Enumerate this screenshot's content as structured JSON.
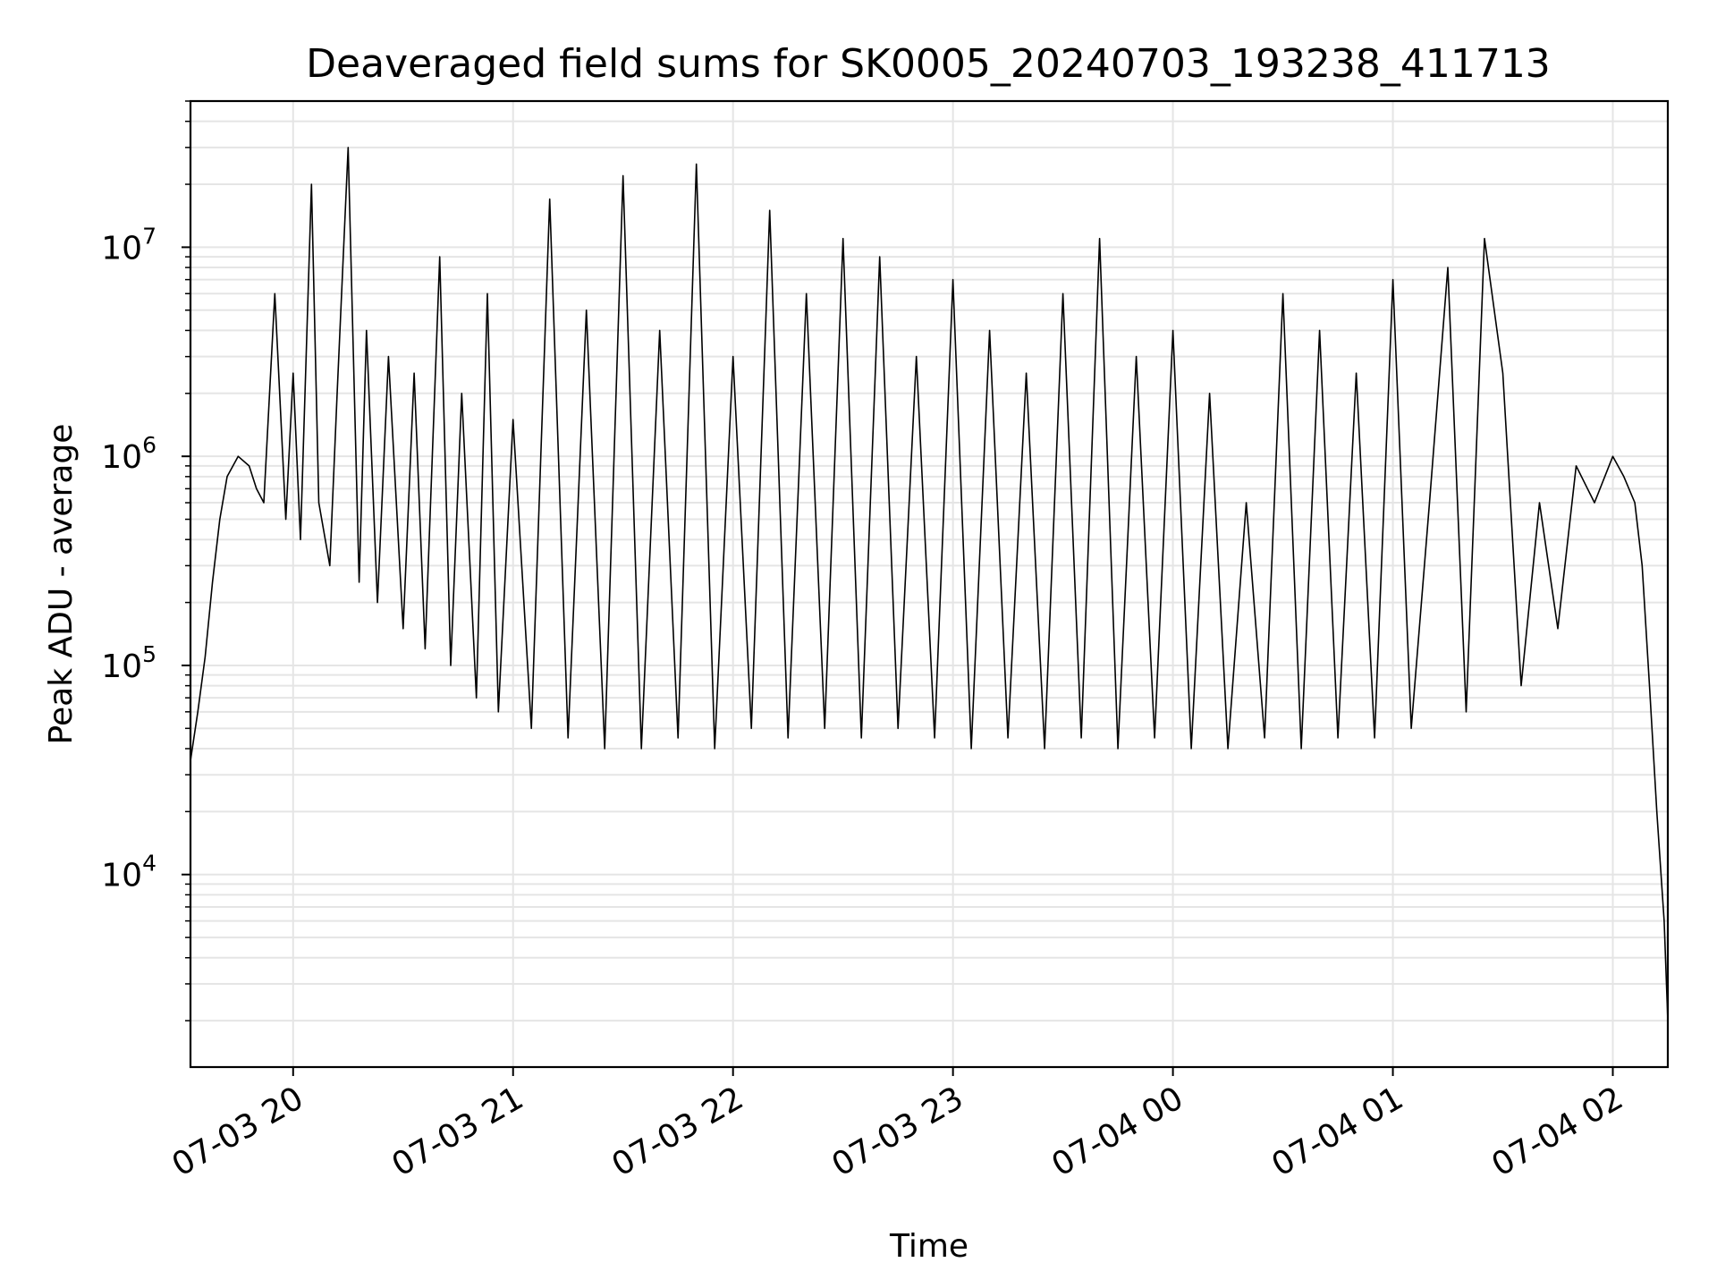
{
  "chart_data": {
    "type": "line",
    "title": "Deaveraged field sums for SK0005_20240703_193238_411713",
    "xlabel": "Time",
    "ylabel": "Peak ADU - average",
    "xscale": "time",
    "yscale": "log",
    "xlim": [
      "07-03 19:32",
      "07-04 02:15"
    ],
    "ylim": [
      1200,
      50000000
    ],
    "grid": true,
    "line_color": "#000000",
    "grid_color": "#e5e5e5",
    "x_ticks": [
      {
        "time": "07-03 20:00",
        "label": "07-03 20"
      },
      {
        "time": "07-03 21:00",
        "label": "07-03 21"
      },
      {
        "time": "07-03 22:00",
        "label": "07-03 22"
      },
      {
        "time": "07-03 23:00",
        "label": "07-03 23"
      },
      {
        "time": "07-04 00:00",
        "label": "07-04 00"
      },
      {
        "time": "07-04 01:00",
        "label": "07-04 01"
      },
      {
        "time": "07-04 02:00",
        "label": "07-04 02"
      }
    ],
    "y_ticks": [
      {
        "value": 10000,
        "base": "10",
        "exp": "4"
      },
      {
        "value": 100000,
        "base": "10",
        "exp": "5"
      },
      {
        "value": 1000000,
        "base": "10",
        "exp": "6"
      },
      {
        "value": 10000000,
        "base": "10",
        "exp": "7"
      }
    ],
    "series": [
      {
        "x": [
          "07-03 19:32",
          "07-03 19:34",
          "07-03 19:36",
          "07-03 19:38",
          "07-03 19:40",
          "07-03 19:42",
          "07-03 19:45",
          "07-03 19:48",
          "07-03 19:50",
          "07-03 19:52",
          "07-03 19:55",
          "07-03 19:58",
          "07-03 20:00",
          "07-03 20:02",
          "07-03 20:05",
          "07-03 20:07",
          "07-03 20:10",
          "07-03 20:12",
          "07-03 20:15",
          "07-03 20:18",
          "07-03 20:20",
          "07-03 20:23",
          "07-03 20:26",
          "07-03 20:30",
          "07-03 20:33",
          "07-03 20:36",
          "07-03 20:40",
          "07-03 20:43",
          "07-03 20:46",
          "07-03 20:50",
          "07-03 20:53",
          "07-03 20:56",
          "07-03 21:00",
          "07-03 21:05",
          "07-03 21:10",
          "07-03 21:15",
          "07-03 21:20",
          "07-03 21:25",
          "07-03 21:30",
          "07-03 21:35",
          "07-03 21:40",
          "07-03 21:45",
          "07-03 21:50",
          "07-03 21:55",
          "07-03 22:00",
          "07-03 22:05",
          "07-03 22:10",
          "07-03 22:15",
          "07-03 22:20",
          "07-03 22:25",
          "07-03 22:30",
          "07-03 22:35",
          "07-03 22:40",
          "07-03 22:45",
          "07-03 22:50",
          "07-03 22:55",
          "07-03 23:00",
          "07-03 23:05",
          "07-03 23:10",
          "07-03 23:15",
          "07-03 23:20",
          "07-03 23:25",
          "07-03 23:30",
          "07-03 23:35",
          "07-03 23:40",
          "07-03 23:45",
          "07-03 23:50",
          "07-03 23:55",
          "07-04 00:00",
          "07-04 00:05",
          "07-04 00:10",
          "07-04 00:15",
          "07-04 00:20",
          "07-04 00:25",
          "07-04 00:30",
          "07-04 00:35",
          "07-04 00:40",
          "07-04 00:45",
          "07-04 00:50",
          "07-04 00:55",
          "07-04 01:00",
          "07-04 01:05",
          "07-04 01:10",
          "07-04 01:15",
          "07-04 01:20",
          "07-04 01:25",
          "07-04 01:30",
          "07-04 01:35",
          "07-04 01:40",
          "07-04 01:45",
          "07-04 01:50",
          "07-04 01:55",
          "07-04 02:00",
          "07-04 02:03",
          "07-04 02:06",
          "07-04 02:08",
          "07-04 02:10",
          "07-04 02:12",
          "07-04 02:14",
          "07-04 02:15"
        ],
        "y": [
          35000,
          60000,
          110000,
          250000,
          500000,
          800000,
          1000000,
          900000,
          700000,
          600000,
          6000000,
          500000,
          2500000,
          400000,
          20000000,
          600000,
          300000,
          2000000,
          30000000,
          250000,
          4000000,
          200000,
          3000000,
          150000,
          2500000,
          120000,
          9000000,
          100000,
          2000000,
          70000,
          6000000,
          60000,
          1500000,
          50000,
          17000000,
          45000,
          5000000,
          40000,
          22000000,
          40000,
          4000000,
          45000,
          25000000,
          40000,
          3000000,
          50000,
          15000000,
          45000,
          6000000,
          50000,
          11000000,
          45000,
          9000000,
          50000,
          3000000,
          45000,
          7000000,
          40000,
          4000000,
          45000,
          2500000,
          40000,
          6000000,
          45000,
          11000000,
          40000,
          3000000,
          45000,
          4000000,
          40000,
          2000000,
          40000,
          600000,
          45000,
          6000000,
          40000,
          4000000,
          45000,
          2500000,
          45000,
          7000000,
          50000,
          600000,
          8000000,
          60000,
          11000000,
          2500000,
          80000,
          600000,
          150000,
          900000,
          600000,
          1000000,
          800000,
          600000,
          300000,
          80000,
          20000,
          6000,
          2000
        ]
      }
    ]
  }
}
